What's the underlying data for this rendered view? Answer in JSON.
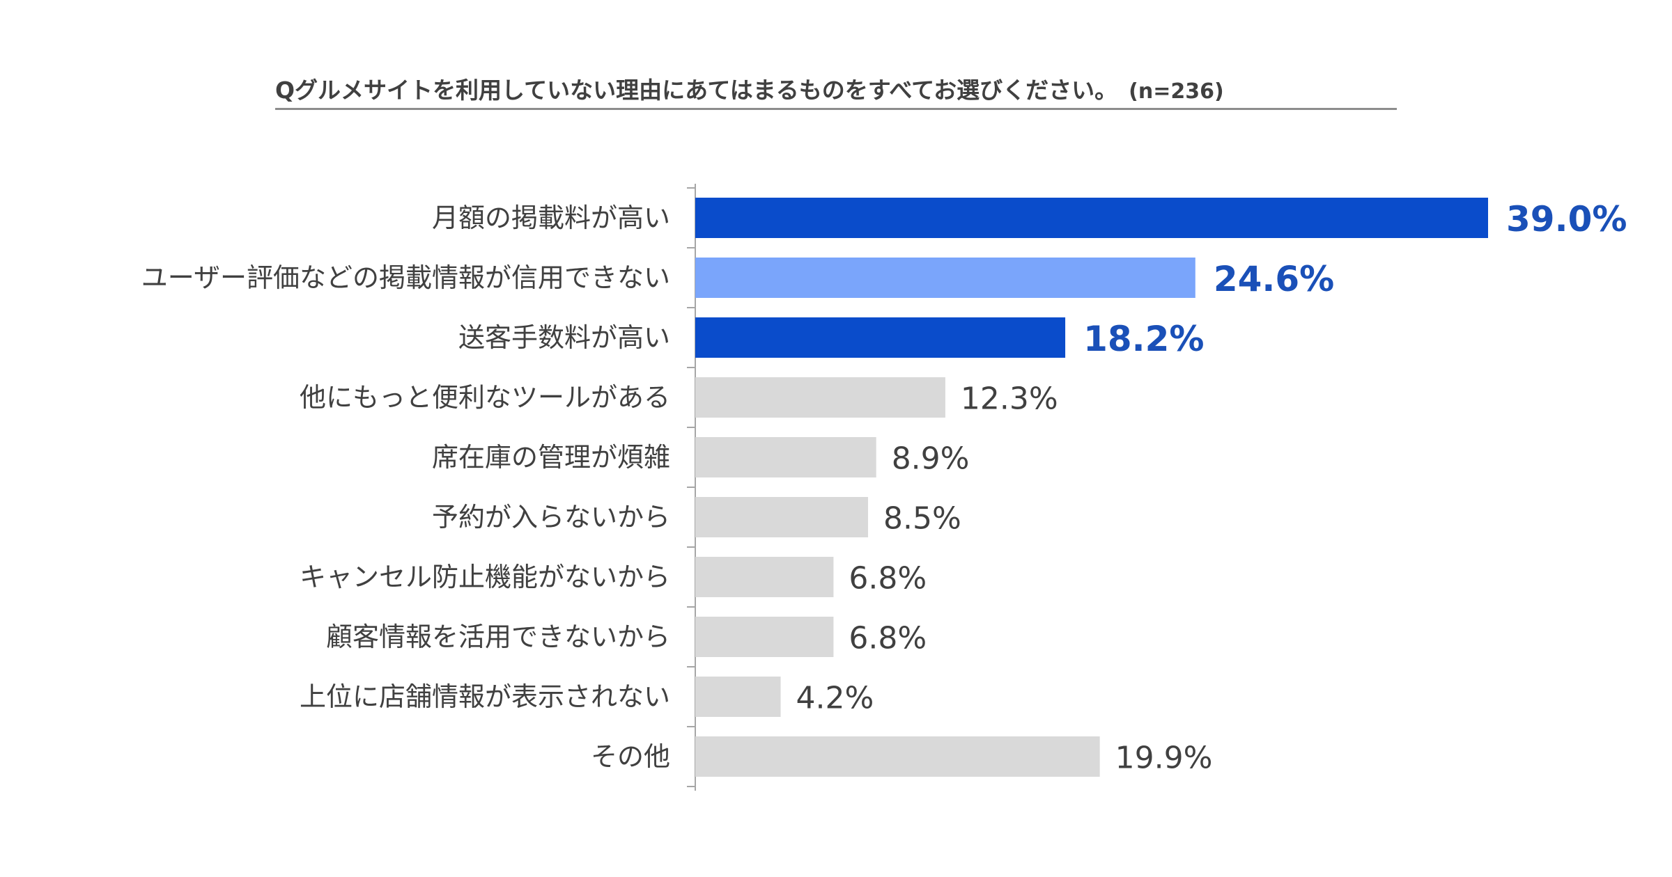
{
  "chart_data": {
    "type": "bar",
    "orientation": "horizontal",
    "title": "Qグルメサイトを利用していない理由にあてはまるものをすべてお選びください。",
    "sample_size": "(n=236)",
    "categories": [
      "月額の掲載料が高い",
      "ユーザー評価などの掲載情報が信用できない",
      "送客手数料が高い",
      "他にもっと便利なツールがある",
      "席在庫の管理が煩雑",
      "予約が入らないから",
      "キャンセル防止機能がないから",
      "顧客情報を活用できないから",
      "上位に店舗情報が表示されない",
      "その他"
    ],
    "values": [
      39.0,
      24.6,
      18.2,
      12.3,
      8.9,
      8.5,
      6.8,
      6.8,
      4.2,
      19.9
    ],
    "value_labels": [
      "39.0%",
      "24.6%",
      "18.2%",
      "12.3%",
      "8.9%",
      "8.5%",
      "6.8%",
      "6.8%",
      "4.2%",
      "19.9%"
    ],
    "bar_colors": [
      "#0a4ccb",
      "#7aa5fb",
      "#0a4ccb",
      "#d9d9d9",
      "#d9d9d9",
      "#d9d9d9",
      "#d9d9d9",
      "#d9d9d9",
      "#d9d9d9",
      "#d9d9d9"
    ],
    "highlighted": [
      true,
      true,
      true,
      false,
      false,
      false,
      false,
      false,
      false,
      false
    ],
    "xlim": [
      0,
      39.0
    ],
    "grid": false,
    "legend": "none"
  }
}
